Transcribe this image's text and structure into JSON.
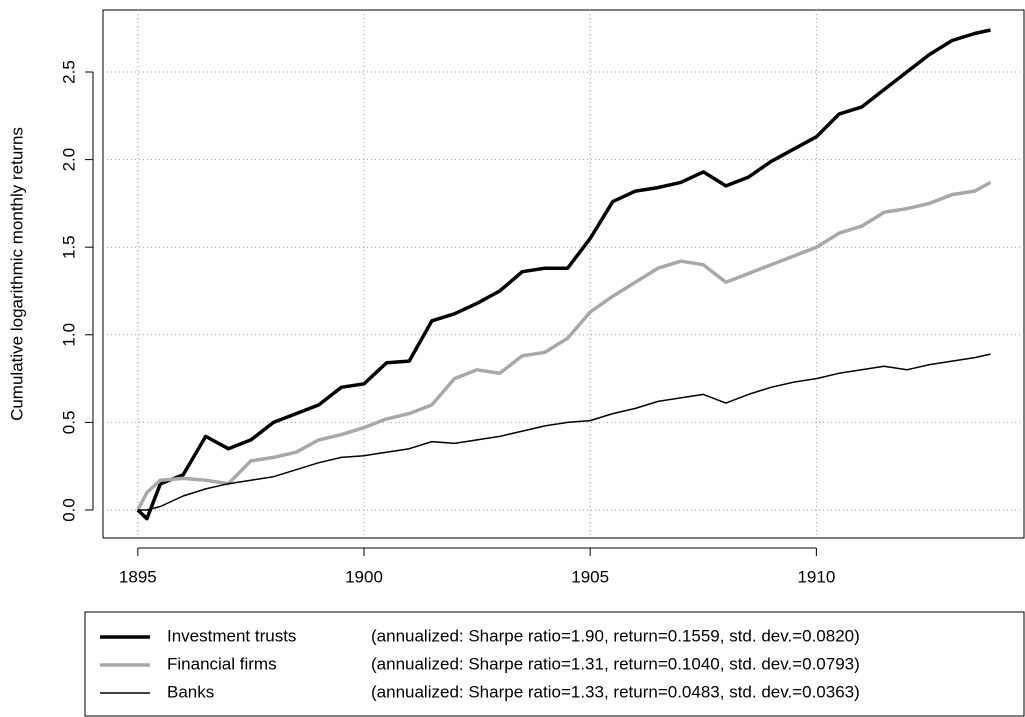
{
  "chart_data": {
    "type": "line",
    "y_label": "Cumulative logarithmic monthly returns",
    "x": [
      1895,
      1895.2,
      1895.5,
      1896,
      1896.5,
      1897,
      1897.5,
      1898,
      1898.5,
      1899,
      1899.5,
      1900,
      1900.5,
      1901,
      1901.5,
      1902,
      1902.5,
      1903,
      1903.5,
      1904,
      1904.5,
      1905,
      1905.5,
      1906,
      1906.5,
      1907,
      1907.5,
      1908,
      1908.5,
      1909,
      1909.5,
      1910,
      1910.5,
      1911,
      1911.5,
      1912,
      1912.5,
      1913,
      1913.5,
      1913.85
    ],
    "series": [
      {
        "name": "Investment trusts",
        "note": "(annualized: Sharpe ratio=1.90, return=0.1559, std. dev.=0.0820)",
        "color": "#000000",
        "values": [
          0,
          -0.05,
          0.15,
          0.2,
          0.42,
          0.35,
          0.4,
          0.5,
          0.55,
          0.6,
          0.7,
          0.72,
          0.84,
          0.85,
          1.08,
          1.12,
          1.18,
          1.25,
          1.36,
          1.38,
          1.38,
          1.55,
          1.76,
          1.82,
          1.84,
          1.87,
          1.93,
          1.85,
          1.9,
          1.99,
          2.06,
          2.13,
          2.26,
          2.3,
          2.4,
          2.5,
          2.6,
          2.68,
          2.72,
          2.74
        ]
      },
      {
        "name": "Financial firms",
        "note": "(annualized: Sharpe ratio=1.31, return=0.1040, std. dev.=0.0793)",
        "color": "#a8a8a8",
        "values": [
          0,
          0.1,
          0.17,
          0.18,
          0.17,
          0.15,
          0.28,
          0.3,
          0.33,
          0.4,
          0.43,
          0.47,
          0.52,
          0.55,
          0.6,
          0.75,
          0.8,
          0.78,
          0.88,
          0.9,
          0.98,
          1.13,
          1.22,
          1.3,
          1.38,
          1.42,
          1.4,
          1.3,
          1.35,
          1.4,
          1.45,
          1.5,
          1.58,
          1.62,
          1.7,
          1.72,
          1.75,
          1.8,
          1.82,
          1.87
        ]
      },
      {
        "name": "Banks",
        "note": "(annualized: Sharpe ratio=1.33, return=0.0483, std. dev.=0.0363)",
        "color": "#000000",
        "values": [
          0,
          0,
          0.02,
          0.08,
          0.12,
          0.15,
          0.17,
          0.19,
          0.23,
          0.27,
          0.3,
          0.31,
          0.33,
          0.35,
          0.39,
          0.38,
          0.4,
          0.42,
          0.45,
          0.48,
          0.5,
          0.51,
          0.55,
          0.58,
          0.62,
          0.64,
          0.66,
          0.61,
          0.66,
          0.7,
          0.73,
          0.75,
          0.78,
          0.8,
          0.82,
          0.8,
          0.83,
          0.85,
          0.87,
          0.89
        ]
      }
    ],
    "xlim": [
      1894.23,
      1914.59
    ],
    "xticks": [
      1895,
      1900,
      1905,
      1910
    ],
    "ylim": [
      -0.16,
      2.854
    ],
    "yticks": [
      {
        "value": 0,
        "label": "0.0"
      },
      0.5,
      {
        "value": 1,
        "label": "1.0"
      },
      1.5,
      {
        "value": 2,
        "label": "2.0"
      },
      2.5
    ],
    "grid": true
  }
}
